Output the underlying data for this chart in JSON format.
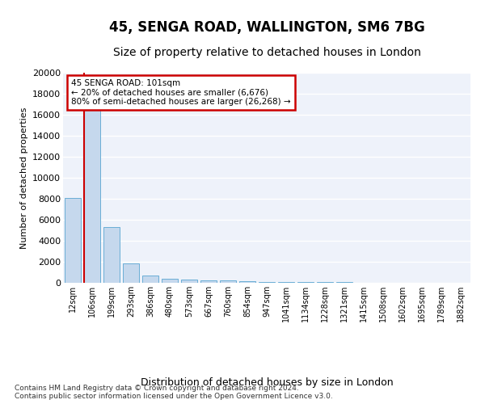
{
  "title_line1": "45, SENGA ROAD, WALLINGTON, SM6 7BG",
  "title_line2": "Size of property relative to detached houses in London",
  "xlabel": "Distribution of detached houses by size in London",
  "ylabel": "Number of detached properties",
  "footnote": "Contains HM Land Registry data © Crown copyright and database right 2024.\nContains public sector information licensed under the Open Government Licence v3.0.",
  "bar_labels": [
    "12sqm",
    "106sqm",
    "199sqm",
    "293sqm",
    "386sqm",
    "480sqm",
    "573sqm",
    "667sqm",
    "760sqm",
    "854sqm",
    "947sqm",
    "1041sqm",
    "1134sqm",
    "1228sqm",
    "1321sqm",
    "1415sqm",
    "1508sqm",
    "1602sqm",
    "1695sqm",
    "1789sqm",
    "1882sqm"
  ],
  "bar_heights": [
    8100,
    16600,
    5300,
    1850,
    700,
    350,
    270,
    230,
    200,
    150,
    100,
    80,
    60,
    50,
    40,
    30,
    25,
    20,
    15,
    10,
    5
  ],
  "bar_color": "#c5d8ed",
  "bar_edge_color": "#6aaed6",
  "annotation_title": "45 SENGA ROAD: 101sqm",
  "annotation_line2": "← 20% of detached houses are smaller (6,676)",
  "annotation_line3": "80% of semi-detached houses are larger (26,268) →",
  "redline_color": "#cc0000",
  "annotation_box_color": "#ffffff",
  "annotation_box_edge": "#cc0000",
  "ylim": [
    0,
    20000
  ],
  "yticks": [
    0,
    2000,
    4000,
    6000,
    8000,
    10000,
    12000,
    14000,
    16000,
    18000,
    20000
  ],
  "background_color": "#eef2fa",
  "grid_color": "#ffffff",
  "title_fontsize": 12,
  "subtitle_fontsize": 10,
  "footnote_fontsize": 6.5
}
